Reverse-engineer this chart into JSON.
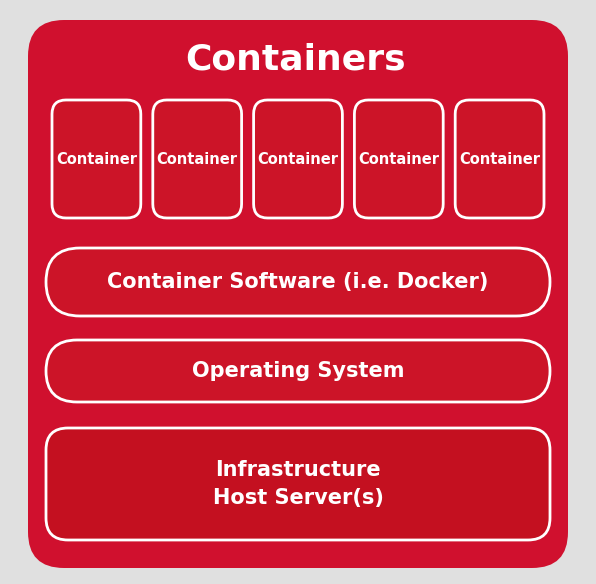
{
  "title": "Containers",
  "title_fontsize": 26,
  "title_color": "#FFFFFF",
  "title_fontweight": "bold",
  "bg_color": "#E0E0E0",
  "outer_box_color": "#D0102E",
  "container_box_color": "#CC1428",
  "container_box_border": "#FFFFFF",
  "row_box_color": "#CC1428",
  "row_box_border": "#FFFFFF",
  "infra_box_color": "#C41020",
  "container_labels": [
    "Container",
    "Container",
    "Container",
    "Container",
    "Container"
  ],
  "container_label_fontsize": 10.5,
  "row_labels": [
    "Container Software (i.e. Docker)",
    "Operating System",
    "Infrastructure\nHost Server(s)"
  ],
  "row_fontsize": 15,
  "text_color": "#FFFFFF"
}
